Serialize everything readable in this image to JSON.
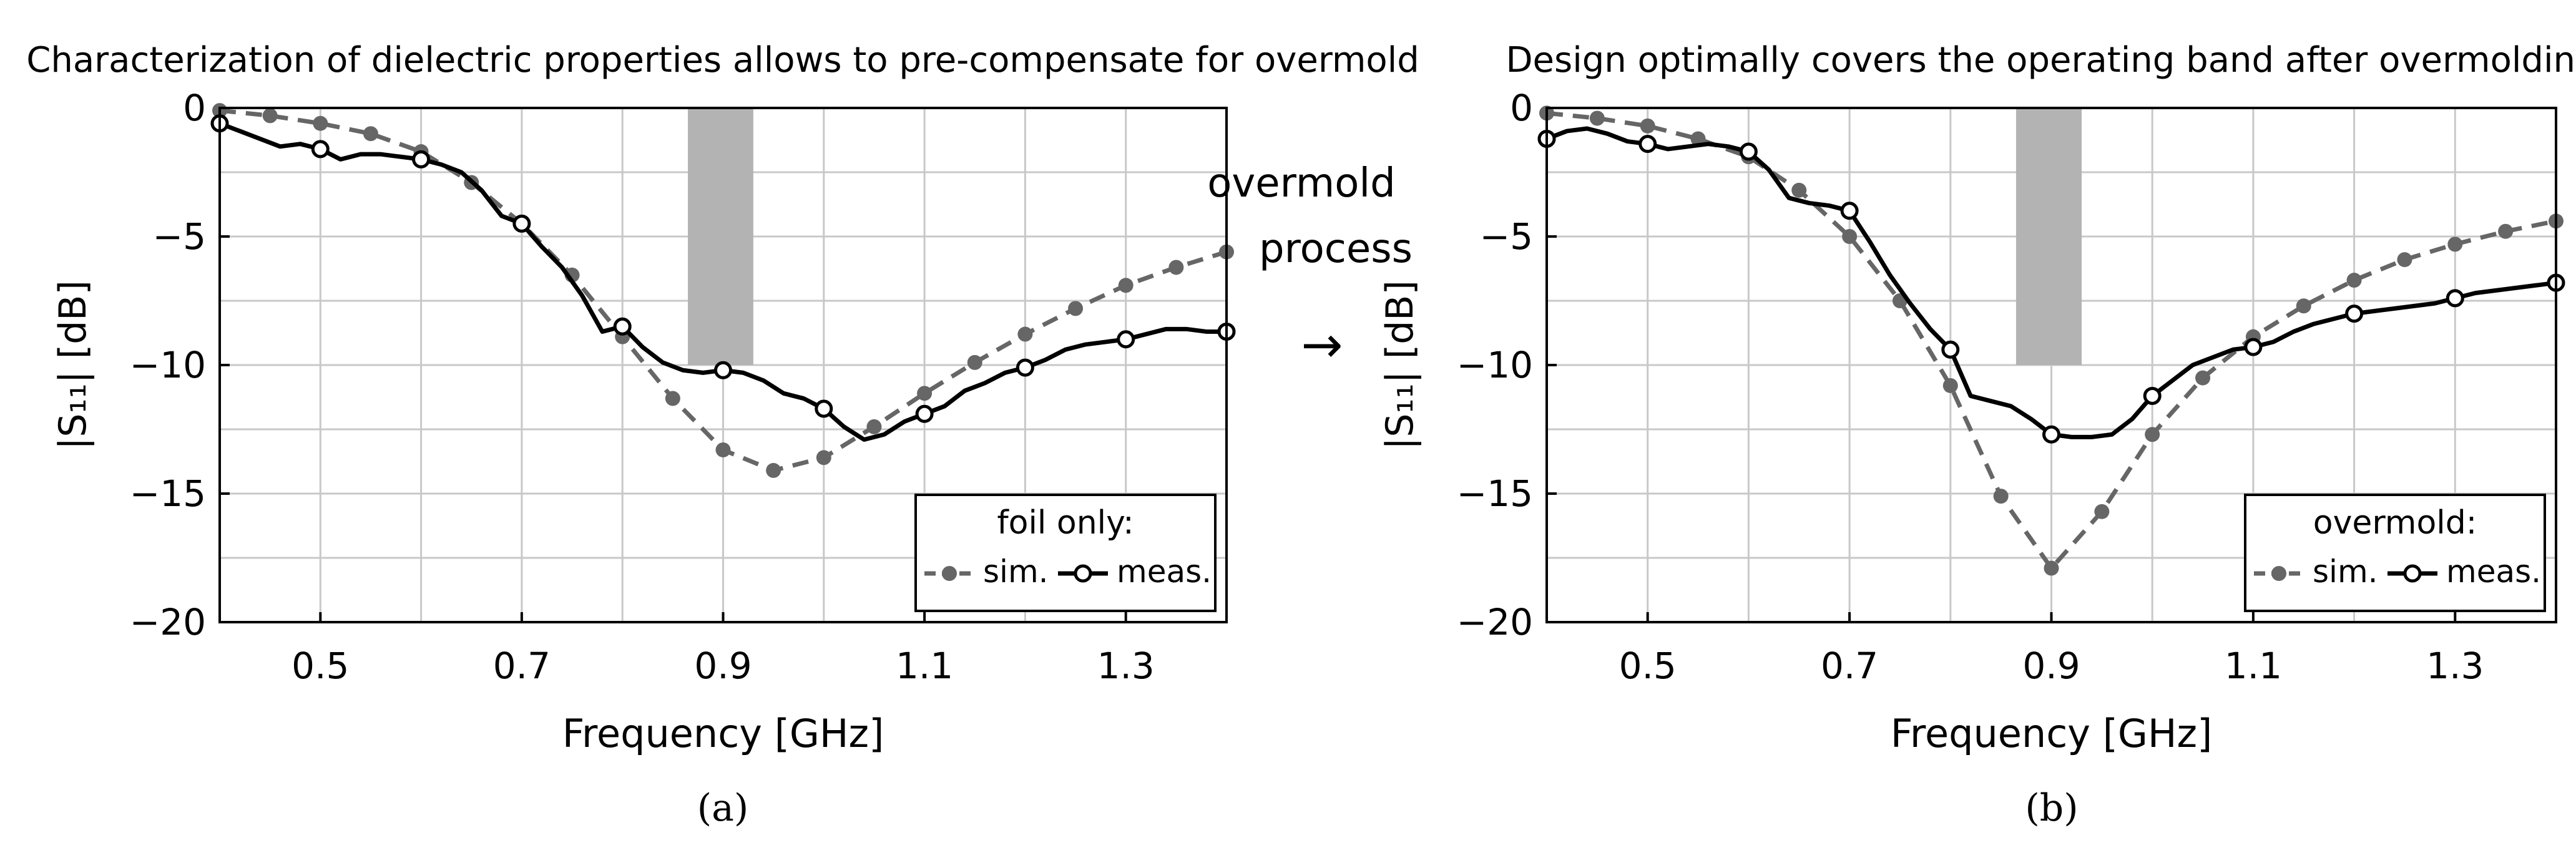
{
  "figure": {
    "arrow_label": [
      "overmold",
      "process"
    ],
    "arrow_glyph": "→",
    "colors": {
      "sim": "#666666",
      "meas": "#000000",
      "band": "#b3b3b3",
      "grid": "#c8c8c8"
    }
  },
  "chart_data": [
    {
      "type": "line",
      "panel": "(a)",
      "title": "Characterization of dielectric properties allows to pre-compensate for overmold",
      "xlabel": "Frequency [GHz]",
      "ylabel": "|S₁₁| [dB]",
      "xlim": [
        0.4,
        1.4
      ],
      "ylim": [
        -20,
        0
      ],
      "xticks": [
        0.5,
        0.7,
        0.9,
        1.1,
        1.3
      ],
      "xtick_labels": [
        "0.5",
        "0.7",
        "0.9",
        "1.1",
        "1.3"
      ],
      "yticks": [
        0,
        -5,
        -10,
        -15,
        -20
      ],
      "ytick_labels": [
        "0",
        "−5",
        "−10",
        "−15",
        "−20"
      ],
      "grid": true,
      "band": {
        "x": [
          0.865,
          0.93
        ],
        "y": [
          -10,
          0
        ]
      },
      "legend": {
        "title": "foil only:",
        "entries": [
          "sim.",
          "meas."
        ],
        "placement": "bottom-right"
      },
      "series": [
        {
          "name": "sim.",
          "style": "dashed",
          "marker": "filled",
          "x": [
            0.4,
            0.45,
            0.5,
            0.55,
            0.6,
            0.65,
            0.7,
            0.75,
            0.8,
            0.85,
            0.9,
            0.95,
            1.0,
            1.05,
            1.1,
            1.15,
            1.2,
            1.25,
            1.3,
            1.35,
            1.4
          ],
          "values": [
            -0.1,
            -0.3,
            -0.6,
            -1.0,
            -1.7,
            -2.9,
            -4.5,
            -6.5,
            -8.9,
            -11.3,
            -13.3,
            -14.1,
            -13.6,
            -12.4,
            -11.1,
            -9.9,
            -8.8,
            -7.8,
            -6.9,
            -6.2,
            -5.6
          ]
        },
        {
          "name": "meas.",
          "style": "solid",
          "marker": "open",
          "x": [
            0.4,
            0.42,
            0.44,
            0.46,
            0.48,
            0.5,
            0.52,
            0.54,
            0.56,
            0.58,
            0.6,
            0.62,
            0.64,
            0.66,
            0.68,
            0.7,
            0.72,
            0.74,
            0.76,
            0.78,
            0.8,
            0.82,
            0.84,
            0.86,
            0.88,
            0.9,
            0.92,
            0.94,
            0.96,
            0.98,
            1.0,
            1.02,
            1.04,
            1.06,
            1.08,
            1.1,
            1.12,
            1.14,
            1.16,
            1.18,
            1.2,
            1.22,
            1.24,
            1.26,
            1.28,
            1.3,
            1.32,
            1.34,
            1.36,
            1.38,
            1.4
          ],
          "values": [
            -0.6,
            -0.9,
            -1.2,
            -1.5,
            -1.4,
            -1.6,
            -2.0,
            -1.8,
            -1.8,
            -1.9,
            -2.0,
            -2.2,
            -2.5,
            -3.2,
            -4.2,
            -4.5,
            -5.4,
            -6.2,
            -7.3,
            -8.7,
            -8.5,
            -9.3,
            -9.9,
            -10.2,
            -10.3,
            -10.2,
            -10.3,
            -10.6,
            -11.1,
            -11.3,
            -11.7,
            -12.4,
            -12.9,
            -12.7,
            -12.2,
            -11.9,
            -11.6,
            -11.0,
            -10.7,
            -10.3,
            -10.1,
            -9.8,
            -9.4,
            -9.2,
            -9.1,
            -9.0,
            -8.8,
            -8.6,
            -8.6,
            -8.7,
            -8.7
          ],
          "marker_x": [
            0.4,
            0.5,
            0.6,
            0.7,
            0.8,
            0.9,
            1.0,
            1.1,
            1.2,
            1.3,
            1.4
          ]
        }
      ]
    },
    {
      "type": "line",
      "panel": "(b)",
      "title": "Design optimally covers the operating band after overmolding",
      "xlabel": "Frequency [GHz]",
      "ylabel": "|S₁₁| [dB]",
      "xlim": [
        0.4,
        1.4
      ],
      "ylim": [
        -20,
        0
      ],
      "xticks": [
        0.5,
        0.7,
        0.9,
        1.1,
        1.3
      ],
      "xtick_labels": [
        "0.5",
        "0.7",
        "0.9",
        "1.1",
        "1.3"
      ],
      "yticks": [
        0,
        -5,
        -10,
        -15,
        -20
      ],
      "ytick_labels": [
        "0",
        "−5",
        "−10",
        "−15",
        "−20"
      ],
      "grid": true,
      "band": {
        "x": [
          0.865,
          0.93
        ],
        "y": [
          -10,
          0
        ]
      },
      "legend": {
        "title": "overmold:",
        "entries": [
          "sim.",
          "meas."
        ],
        "placement": "bottom-right"
      },
      "series": [
        {
          "name": "sim.",
          "style": "dashed",
          "marker": "filled",
          "x": [
            0.4,
            0.45,
            0.5,
            0.55,
            0.6,
            0.65,
            0.7,
            0.75,
            0.8,
            0.85,
            0.9,
            0.95,
            1.0,
            1.05,
            1.1,
            1.15,
            1.2,
            1.25,
            1.3,
            1.35,
            1.4
          ],
          "values": [
            -0.2,
            -0.4,
            -0.7,
            -1.2,
            -1.9,
            -3.2,
            -5.0,
            -7.5,
            -10.8,
            -15.1,
            -17.9,
            -15.7,
            -12.7,
            -10.5,
            -8.9,
            -7.7,
            -6.7,
            -5.9,
            -5.3,
            -4.8,
            -4.4
          ]
        },
        {
          "name": "meas.",
          "style": "solid",
          "marker": "open",
          "x": [
            0.4,
            0.42,
            0.44,
            0.46,
            0.48,
            0.5,
            0.52,
            0.54,
            0.56,
            0.58,
            0.6,
            0.62,
            0.64,
            0.66,
            0.68,
            0.7,
            0.72,
            0.74,
            0.76,
            0.78,
            0.8,
            0.82,
            0.84,
            0.86,
            0.88,
            0.9,
            0.92,
            0.94,
            0.96,
            0.98,
            1.0,
            1.02,
            1.04,
            1.06,
            1.08,
            1.1,
            1.12,
            1.14,
            1.16,
            1.18,
            1.2,
            1.22,
            1.24,
            1.26,
            1.28,
            1.3,
            1.32,
            1.34,
            1.36,
            1.38,
            1.4
          ],
          "values": [
            -1.2,
            -0.9,
            -0.8,
            -1.0,
            -1.3,
            -1.4,
            -1.6,
            -1.5,
            -1.4,
            -1.5,
            -1.7,
            -2.4,
            -3.5,
            -3.7,
            -3.8,
            -4.0,
            -5.2,
            -6.5,
            -7.6,
            -8.6,
            -9.4,
            -11.2,
            -11.4,
            -11.6,
            -12.1,
            -12.7,
            -12.8,
            -12.8,
            -12.7,
            -12.1,
            -11.2,
            -10.6,
            -10.0,
            -9.7,
            -9.4,
            -9.3,
            -9.1,
            -8.7,
            -8.4,
            -8.2,
            -8.0,
            -7.9,
            -7.8,
            -7.7,
            -7.6,
            -7.4,
            -7.2,
            -7.1,
            -7.0,
            -6.9,
            -6.8
          ],
          "marker_x": [
            0.4,
            0.5,
            0.6,
            0.7,
            0.8,
            0.9,
            1.0,
            1.1,
            1.2,
            1.3,
            1.4
          ]
        }
      ]
    }
  ]
}
